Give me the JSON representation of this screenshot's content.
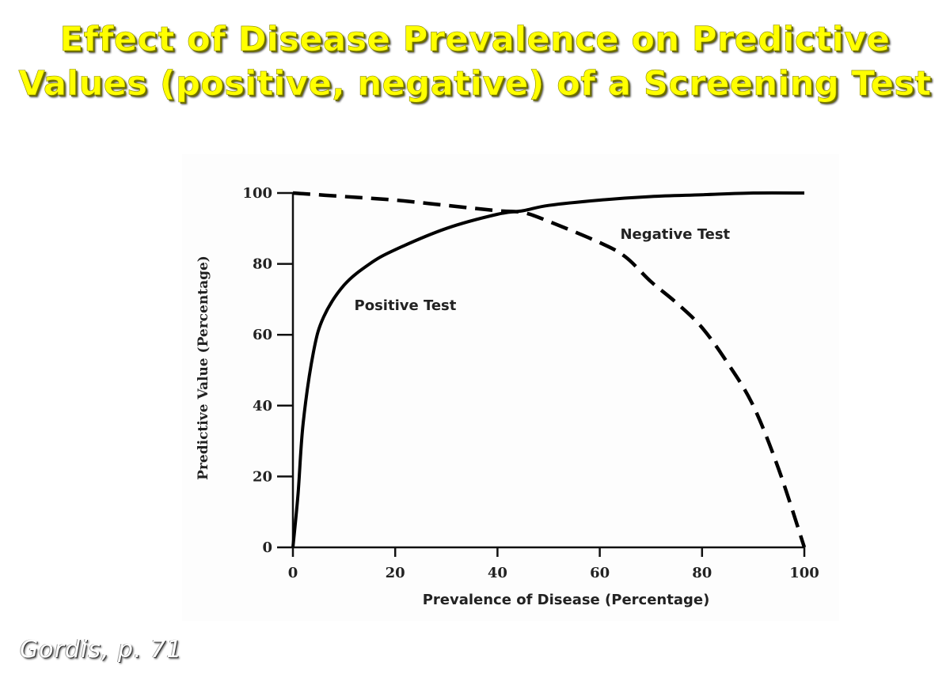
{
  "slide": {
    "title_lines": [
      "Effect of Disease Prevalence on Predictive",
      "Values (positive, negative) of a Screening Test"
    ],
    "citation": "Gordis, p. 71",
    "title_color": "#ffff00"
  },
  "chart_data": {
    "type": "line",
    "title": "",
    "xlabel": "Prevalence of Disease (Percentage)",
    "ylabel": "Predictive Value (Percentage)",
    "xlim": [
      0,
      100
    ],
    "ylim": [
      0,
      100
    ],
    "xticks": [
      "0",
      "20",
      "40",
      "60",
      "80",
      "100"
    ],
    "yticks": [
      "0",
      "20",
      "40",
      "60",
      "80",
      "100"
    ],
    "grid": false,
    "series": [
      {
        "name": "Positive Test",
        "style": "solid",
        "x": [
          0,
          1,
          2,
          4,
          6,
          10,
          15,
          20,
          30,
          40,
          45,
          50,
          60,
          70,
          80,
          90,
          100
        ],
        "values": [
          0,
          15,
          35,
          55,
          65,
          74,
          80,
          84,
          90,
          94,
          95,
          96.5,
          98,
          99,
          99.5,
          100,
          100
        ]
      },
      {
        "name": "Negative Test",
        "style": "dashed",
        "x": [
          0,
          10,
          20,
          30,
          40,
          45,
          50,
          60,
          65,
          70,
          75,
          80,
          85,
          90,
          95,
          100
        ],
        "values": [
          100,
          99,
          98,
          96.5,
          95,
          94.5,
          92,
          86,
          82,
          75,
          69,
          62,
          52,
          40,
          22,
          0
        ]
      }
    ],
    "annotations": [
      {
        "text": "Positive Test",
        "x": 12,
        "y": 67
      },
      {
        "text": "Negative Test",
        "x": 64,
        "y": 87
      }
    ]
  }
}
